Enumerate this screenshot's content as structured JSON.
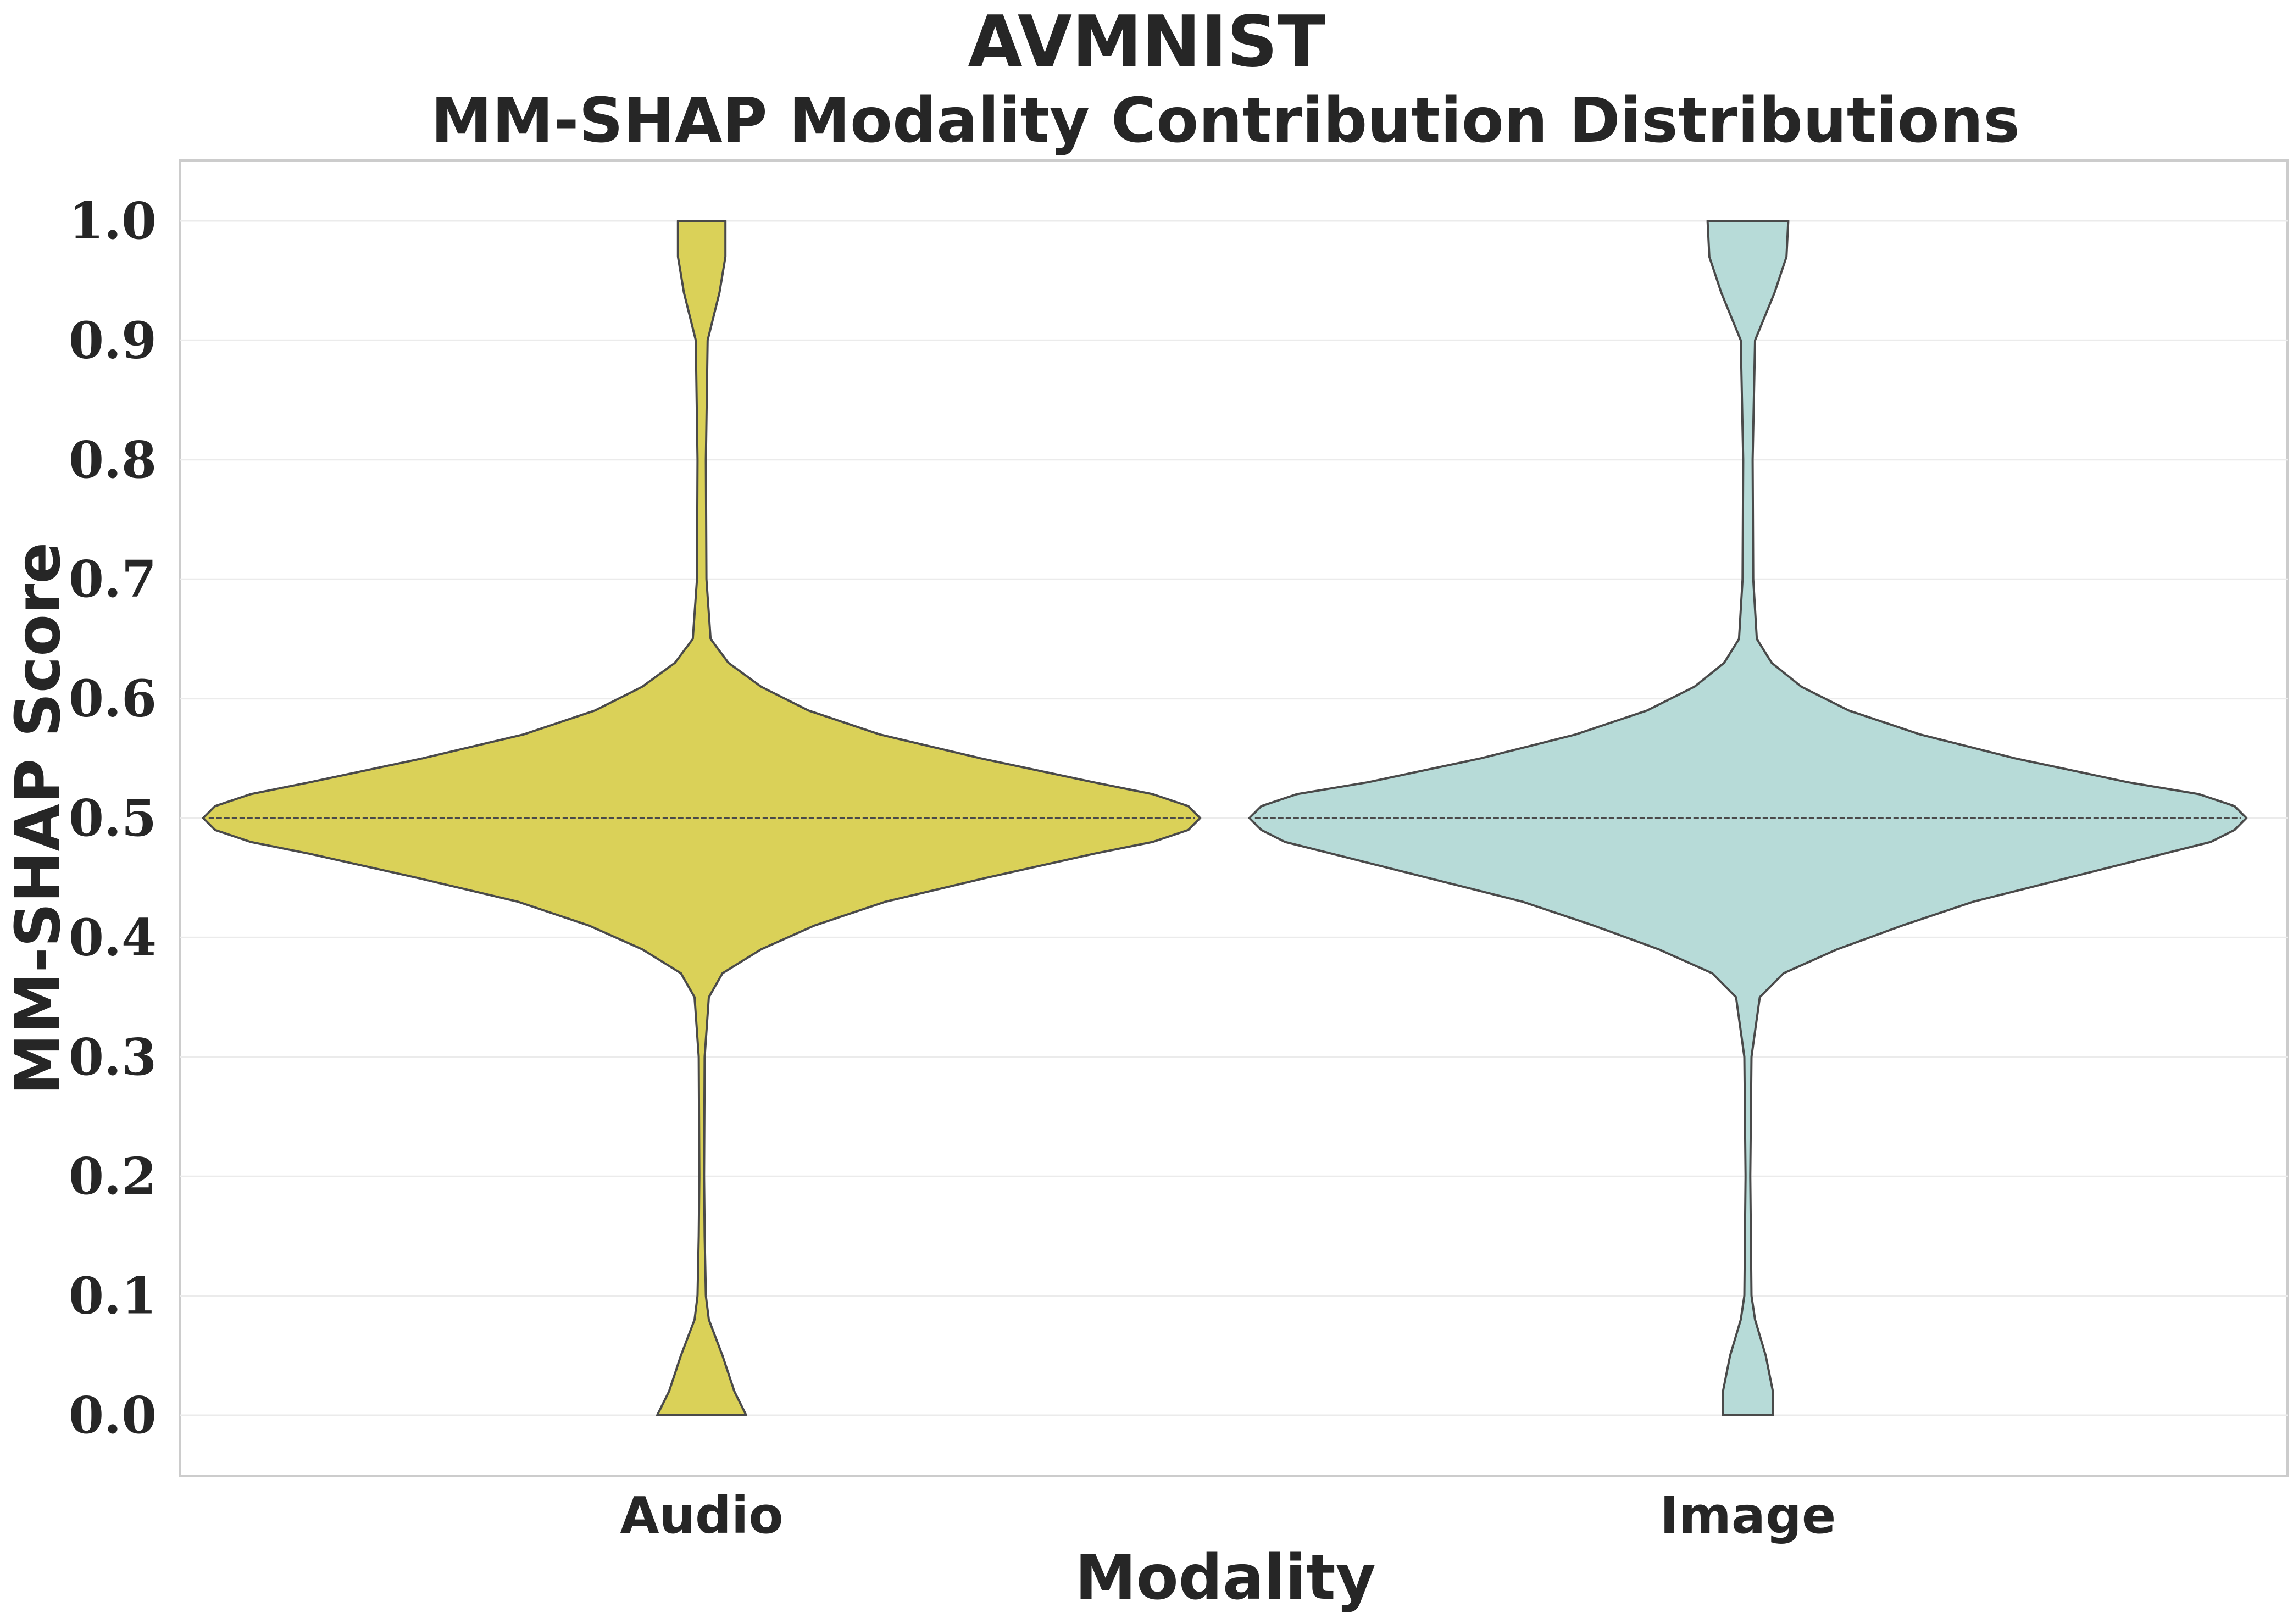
{
  "chart_data": {
    "type": "violin",
    "title": "AVMNIST",
    "subtitle": "MM-SHAP Modality Contribution Distributions",
    "xlabel": "Modality",
    "ylabel": "MM-SHAP Score",
    "categories": [
      "Audio",
      "Image"
    ],
    "ylim": [
      -0.05,
      1.05
    ],
    "yticks": [
      "0.0",
      "0.1",
      "0.2",
      "0.3",
      "0.4",
      "0.5",
      "0.6",
      "0.7",
      "0.8",
      "0.9",
      "1.0"
    ],
    "grid": true,
    "median": [
      0.5,
      0.5
    ],
    "series": [
      {
        "color": "#dad158",
        "density_y": [
          0.0,
          0.02,
          0.05,
          0.08,
          0.1,
          0.15,
          0.2,
          0.3,
          0.35,
          0.37,
          0.39,
          0.41,
          0.43,
          0.45,
          0.47,
          0.48,
          0.49,
          0.5,
          0.51,
          0.52,
          0.53,
          0.55,
          0.57,
          0.59,
          0.61,
          0.63,
          0.65,
          0.7,
          0.8,
          0.9,
          0.94,
          0.97,
          1.0
        ],
        "density_width": [
          0.075,
          0.055,
          0.035,
          0.012,
          0.007,
          0.005,
          0.004,
          0.005,
          0.012,
          0.035,
          0.1,
          0.19,
          0.31,
          0.48,
          0.66,
          0.76,
          0.82,
          0.84,
          0.82,
          0.76,
          0.66,
          0.47,
          0.3,
          0.18,
          0.1,
          0.045,
          0.015,
          0.008,
          0.007,
          0.01,
          0.03,
          0.04,
          0.04
        ]
      },
      {
        "color": "#b7dbd8",
        "density_y": [
          0.0,
          0.02,
          0.05,
          0.08,
          0.1,
          0.15,
          0.2,
          0.3,
          0.35,
          0.37,
          0.39,
          0.41,
          0.43,
          0.45,
          0.47,
          0.48,
          0.49,
          0.5,
          0.51,
          0.52,
          0.53,
          0.55,
          0.57,
          0.59,
          0.61,
          0.63,
          0.65,
          0.7,
          0.8,
          0.9,
          0.94,
          0.97,
          1.0
        ],
        "density_width": [
          0.042,
          0.042,
          0.03,
          0.012,
          0.006,
          0.005,
          0.004,
          0.006,
          0.02,
          0.06,
          0.15,
          0.26,
          0.38,
          0.54,
          0.7,
          0.78,
          0.82,
          0.84,
          0.82,
          0.76,
          0.64,
          0.45,
          0.29,
          0.17,
          0.09,
          0.04,
          0.015,
          0.009,
          0.008,
          0.012,
          0.045,
          0.065,
          0.068
        ]
      }
    ]
  }
}
